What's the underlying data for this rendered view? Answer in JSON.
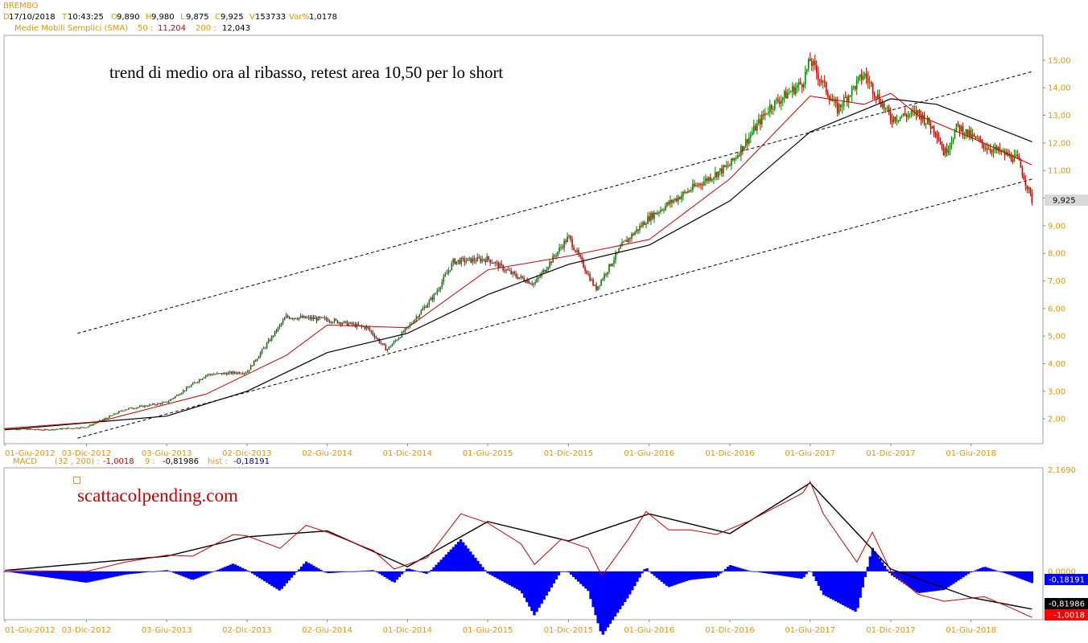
{
  "header": {
    "symbol": "BREMBO",
    "line1": [
      {
        "k": "D",
        "v": "17/10/2018"
      },
      {
        "k": "T",
        "v": "10:43:25"
      },
      {
        "k": "O",
        "v": "9,890"
      },
      {
        "k": "H",
        "v": "9,980"
      },
      {
        "k": "L",
        "v": "9,875"
      },
      {
        "k": "C",
        "v": "9,925"
      },
      {
        "k": "V",
        "v": "153733"
      },
      {
        "k": "Var%",
        "v": "1,0178"
      }
    ],
    "sma_label": "Medie Mobili Semplici (SMA)",
    "sma_fast_label": "50 :",
    "sma_fast_value": "11,204",
    "sma_slow_label": "200 :",
    "sma_slow_value": "12,043"
  },
  "annotations": {
    "main": "trend di medio ora al ribasso, retest area 10,50 per lo short",
    "watermark": "scattacolpending.com"
  },
  "macd_header": {
    "label": "MACD",
    "params": "(32 , 200) :",
    "macd_value": "-1,0018",
    "signal_label": "9 :",
    "signal_value": "-0,81986",
    "hist_label": "hist :",
    "hist_value": "-0,18191"
  },
  "colors": {
    "up": "#008000",
    "down": "#cc0000",
    "sma50": "#cc0000",
    "sma200": "#000000",
    "hist": "#0000ff",
    "axis_text": "#e69500",
    "last_price_bg": "#d9d9d9",
    "hist_tag_bg": "#0000ff",
    "signal_tag_bg": "#000000",
    "macd_tag_bg": "#ff0000"
  },
  "chart_data": [
    {
      "type": "candlestick",
      "title": "BREMBO",
      "x_tick_labels": [
        "01-Giu-2012",
        "03-Dic-2012",
        "03-Giu-2013",
        "02-Dic-2013",
        "02-Giu-2014",
        "01-Dic-2014",
        "01-Giu-2015",
        "01-Dic-2015",
        "01-Giu-2016",
        "01-Dic-2016",
        "01-Giu-2017",
        "01-Dic-2017",
        "01-Giu-2018"
      ],
      "y_tick_labels": [
        "2,00",
        "3,00",
        "4,00",
        "5,00",
        "6,00",
        "7,00",
        "8,00",
        "9,00",
        "10,00",
        "11,00",
        "12,00",
        "13,00",
        "14,00",
        "15,00"
      ],
      "ylim": [
        1.1,
        15.9
      ],
      "last_price_label": "9,925",
      "price_path": [
        [
          "2012-06-01",
          1.65
        ],
        [
          "2012-09-01",
          1.6
        ],
        [
          "2012-12-03",
          1.7
        ],
        [
          "2013-03-01",
          2.35
        ],
        [
          "2013-06-03",
          2.6
        ],
        [
          "2013-09-01",
          3.6
        ],
        [
          "2013-12-02",
          3.7
        ],
        [
          "2014-03-01",
          5.7
        ],
        [
          "2014-06-02",
          5.6
        ],
        [
          "2014-09-01",
          5.3
        ],
        [
          "2014-10-15",
          4.5
        ],
        [
          "2014-12-01",
          5.3
        ],
        [
          "2015-02-01",
          6.5
        ],
        [
          "2015-03-15",
          7.7
        ],
        [
          "2015-06-01",
          7.8
        ],
        [
          "2015-08-01",
          7.2
        ],
        [
          "2015-09-15",
          6.9
        ],
        [
          "2015-12-01",
          8.6
        ],
        [
          "2016-02-01",
          6.7
        ],
        [
          "2016-04-01",
          8.3
        ],
        [
          "2016-06-01",
          9.3
        ],
        [
          "2016-07-15",
          9.8
        ],
        [
          "2016-09-01",
          10.3
        ],
        [
          "2016-12-01",
          11.2
        ],
        [
          "2017-03-01",
          13.3
        ],
        [
          "2017-05-15",
          14.2
        ],
        [
          "2017-06-01",
          15.0
        ],
        [
          "2017-08-01",
          13.2
        ],
        [
          "2017-10-01",
          14.5
        ],
        [
          "2017-12-01",
          12.9
        ],
        [
          "2018-02-01",
          13.1
        ],
        [
          "2018-03-15",
          12.4
        ],
        [
          "2018-04-01",
          11.6
        ],
        [
          "2018-05-01",
          12.6
        ],
        [
          "2018-07-01",
          11.9
        ],
        [
          "2018-09-15",
          11.4
        ],
        [
          "2018-10-17",
          9.925
        ]
      ],
      "sma50": [
        [
          "2012-06-01",
          1.65
        ],
        [
          "2013-01-01",
          1.9
        ],
        [
          "2013-09-01",
          2.9
        ],
        [
          "2014-03-01",
          4.3
        ],
        [
          "2014-06-02",
          5.4
        ],
        [
          "2014-12-01",
          5.3
        ],
        [
          "2015-06-01",
          7.4
        ],
        [
          "2015-12-01",
          7.9
        ],
        [
          "2016-06-01",
          8.5
        ],
        [
          "2016-12-01",
          10.7
        ],
        [
          "2017-06-01",
          13.7
        ],
        [
          "2017-10-01",
          13.4
        ],
        [
          "2017-12-01",
          13.8
        ],
        [
          "2018-02-01",
          13.0
        ],
        [
          "2018-06-01",
          12.2
        ],
        [
          "2018-10-17",
          11.204
        ]
      ],
      "sma200": [
        [
          "2012-06-01",
          1.6
        ],
        [
          "2013-06-03",
          2.1
        ],
        [
          "2013-12-02",
          3.0
        ],
        [
          "2014-06-02",
          4.4
        ],
        [
          "2014-12-01",
          5.1
        ],
        [
          "2015-06-01",
          6.5
        ],
        [
          "2015-12-01",
          7.6
        ],
        [
          "2016-06-01",
          8.3
        ],
        [
          "2016-12-01",
          9.9
        ],
        [
          "2017-06-01",
          12.4
        ],
        [
          "2017-12-01",
          13.6
        ],
        [
          "2018-03-15",
          13.4
        ],
        [
          "2018-10-17",
          12.043
        ]
      ],
      "trendlines": [
        {
          "name": "upper channel",
          "points": [
            [
              "2012-06-20",
              5.1
            ],
            [
              "2018-10-20",
              14.6
            ]
          ]
        },
        {
          "name": "lower channel",
          "points": [
            [
              "2012-06-20",
              1.3
            ],
            [
              "2018-10-20",
              10.7
            ]
          ]
        }
      ],
      "xlabel": "",
      "ylabel": "",
      "grid": false,
      "legend": "none"
    },
    {
      "type": "line",
      "title": "MACD (32 , 200)",
      "x_tick_labels": [
        "01-Giu-2012",
        "03-Dic-2012",
        "03-Giu-2013",
        "02-Dic-2013",
        "02-Giu-2014",
        "01-Dic-2014",
        "01-Giu-2015",
        "01-Dic-2015",
        "01-Giu-2016",
        "01-Dic-2016",
        "01-Giu-2017",
        "01-Dic-2017",
        "01-Giu-2018"
      ],
      "y_tick_labels": [
        "2,1690",
        "0,0000"
      ],
      "ylim": [
        -1.05,
        2.25
      ],
      "value_tags": [
        "-0,18191",
        "-0,81986",
        "-1,0018"
      ],
      "series": [
        {
          "name": "MACD",
          "values": [
            [
              "2012-06-01",
              0.02
            ],
            [
              "2012-12-03",
              0.0
            ],
            [
              "2013-03-01",
              0.2
            ],
            [
              "2013-06-03",
              0.35
            ],
            [
              "2013-08-01",
              0.33
            ],
            [
              "2013-11-01",
              0.8
            ],
            [
              "2013-12-02",
              0.77
            ],
            [
              "2014-02-15",
              0.5
            ],
            [
              "2014-04-15",
              1.0
            ],
            [
              "2014-06-02",
              0.85
            ],
            [
              "2014-09-15",
              0.45
            ],
            [
              "2014-11-01",
              0.05
            ],
            [
              "2015-01-15",
              0.3
            ],
            [
              "2015-04-01",
              1.25
            ],
            [
              "2015-06-01",
              1.05
            ],
            [
              "2015-08-15",
              0.6
            ],
            [
              "2015-09-15",
              0.15
            ],
            [
              "2015-11-15",
              0.7
            ],
            [
              "2016-01-15",
              0.5
            ],
            [
              "2016-02-15",
              -0.1
            ],
            [
              "2016-04-15",
              0.7
            ],
            [
              "2016-05-25",
              1.3
            ],
            [
              "2016-07-15",
              0.9
            ],
            [
              "2016-09-01",
              0.9
            ],
            [
              "2016-11-01",
              0.8
            ],
            [
              "2017-01-15",
              1.1
            ],
            [
              "2017-05-15",
              1.7
            ],
            [
              "2017-06-01",
              1.95
            ],
            [
              "2017-07-01",
              1.25
            ],
            [
              "2017-09-15",
              0.2
            ],
            [
              "2017-10-20",
              0.85
            ],
            [
              "2017-12-01",
              0.0
            ],
            [
              "2018-02-01",
              -0.5
            ],
            [
              "2018-04-01",
              -0.65
            ],
            [
              "2018-07-01",
              -0.55
            ],
            [
              "2018-09-01",
              -0.8
            ],
            [
              "2018-10-17",
              -1.0018
            ]
          ]
        },
        {
          "name": "signal",
          "values": [
            [
              "2012-06-01",
              0.02
            ],
            [
              "2013-06-03",
              0.33
            ],
            [
              "2013-12-02",
              0.75
            ],
            [
              "2014-06-02",
              0.88
            ],
            [
              "2014-12-01",
              0.1
            ],
            [
              "2015-06-01",
              1.08
            ],
            [
              "2015-12-01",
              0.66
            ],
            [
              "2016-06-01",
              1.25
            ],
            [
              "2016-12-01",
              0.82
            ],
            [
              "2017-06-01",
              1.92
            ],
            [
              "2017-12-01",
              0.05
            ],
            [
              "2018-06-01",
              -0.57
            ],
            [
              "2018-10-17",
              -0.81986
            ]
          ]
        }
      ],
      "histogram_last": -0.18191,
      "xlabel": "",
      "ylabel": "",
      "grid": false,
      "legend": "none"
    }
  ]
}
